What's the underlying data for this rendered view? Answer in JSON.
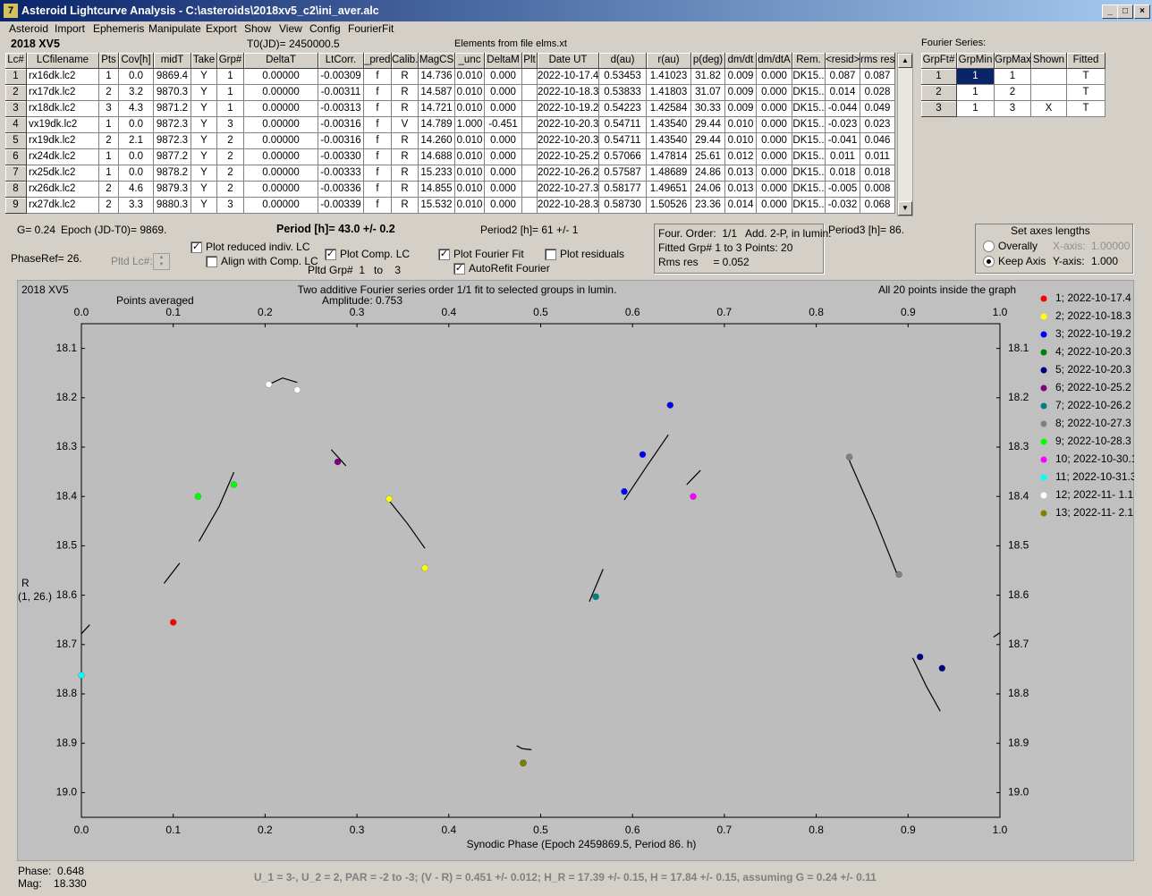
{
  "window": {
    "title": "Asteroid Lightcurve Analysis - C:\\asteroids\\2018xv5_c2\\ini_aver.alc",
    "menu": [
      "Asteroid",
      "Import",
      "Ephemeris",
      "Manipulate",
      "Export",
      "Show",
      "View",
      "Config",
      "FourierFit"
    ]
  },
  "header": {
    "object": "2018 XV5",
    "t0": "T0(JD)= 2450000.5",
    "elements": "Elements from file elms.xt"
  },
  "table": {
    "columns": [
      "Lc#",
      "LCfilename",
      "Pts",
      "Cov[h]",
      "midT",
      "Take",
      "Grp#",
      "DeltaT",
      "LtCorr.",
      "_pred.",
      "Calib.",
      "MagCS",
      "_unc",
      "DeltaM",
      "Plt",
      "Date UT",
      "d(au)",
      "r(au)",
      "p(deg)",
      "dm/dt",
      "dm/dtA",
      "Rem.",
      "<resid>",
      "rms res"
    ],
    "rows": [
      [
        "1",
        "rx16dk.lc2",
        "1",
        "0.0",
        "9869.4",
        "Y",
        "1",
        "0.00000",
        "-0.00309",
        "f",
        "R",
        "14.736",
        "0.010",
        "0.000",
        null,
        "2022-10-17.4",
        "0.53453",
        "1.41023",
        "31.82",
        "0.009",
        "0.000",
        "DK15..",
        "0.087",
        "0.087"
      ],
      [
        "2",
        "rx17dk.lc2",
        "2",
        "3.2",
        "9870.3",
        "Y",
        "1",
        "0.00000",
        "-0.00311",
        "f",
        "R",
        "14.587",
        "0.010",
        "0.000",
        null,
        "2022-10-18.3",
        "0.53833",
        "1.41803",
        "31.07",
        "0.009",
        "0.000",
        "DK15..",
        "0.014",
        "0.028"
      ],
      [
        "3",
        "rx18dk.lc2",
        "3",
        "4.3",
        "9871.2",
        "Y",
        "1",
        "0.00000",
        "-0.00313",
        "f",
        "R",
        "14.721",
        "0.010",
        "0.000",
        null,
        "2022-10-19.2",
        "0.54223",
        "1.42584",
        "30.33",
        "0.009",
        "0.000",
        "DK15..",
        "-0.044",
        "0.049"
      ],
      [
        "4",
        "vx19dk.lc2",
        "1",
        "0.0",
        "9872.3",
        "Y",
        "3",
        "0.00000",
        "-0.00316",
        "f",
        "V",
        "14.789",
        "1.000",
        "-0.451",
        null,
        "2022-10-20.3",
        "0.54711",
        "1.43540",
        "29.44",
        "0.010",
        "0.000",
        "DK15..",
        "-0.023",
        "0.023"
      ],
      [
        "5",
        "rx19dk.lc2",
        "2",
        "2.1",
        "9872.3",
        "Y",
        "2",
        "0.00000",
        "-0.00316",
        "f",
        "R",
        "14.260",
        "0.010",
        "0.000",
        null,
        "2022-10-20.3",
        "0.54711",
        "1.43540",
        "29.44",
        "0.010",
        "0.000",
        "DK15..",
        "-0.041",
        "0.046"
      ],
      [
        "6",
        "rx24dk.lc2",
        "1",
        "0.0",
        "9877.2",
        "Y",
        "2",
        "0.00000",
        "-0.00330",
        "f",
        "R",
        "14.688",
        "0.010",
        "0.000",
        null,
        "2022-10-25.2",
        "0.57066",
        "1.47814",
        "25.61",
        "0.012",
        "0.000",
        "DK15..",
        "0.011",
        "0.011"
      ],
      [
        "7",
        "rx25dk.lc2",
        "1",
        "0.0",
        "9878.2",
        "Y",
        "2",
        "0.00000",
        "-0.00333",
        "f",
        "R",
        "15.233",
        "0.010",
        "0.000",
        null,
        "2022-10-26.2",
        "0.57587",
        "1.48689",
        "24.86",
        "0.013",
        "0.000",
        "DK15..",
        "0.018",
        "0.018"
      ],
      [
        "8",
        "rx26dk.lc2",
        "2",
        "4.6",
        "9879.3",
        "Y",
        "2",
        "0.00000",
        "-0.00336",
        "f",
        "R",
        "14.855",
        "0.010",
        "0.000",
        null,
        "2022-10-27.3",
        "0.58177",
        "1.49651",
        "24.06",
        "0.013",
        "0.000",
        "DK15..",
        "-0.005",
        "0.008"
      ],
      [
        "9",
        "rx27dk.lc2",
        "2",
        "3.3",
        "9880.3",
        "Y",
        "3",
        "0.00000",
        "-0.00339",
        "f",
        "R",
        "15.532",
        "0.010",
        "0.000",
        null,
        "2022-10-28.3",
        "0.58730",
        "1.50526",
        "23.36",
        "0.014",
        "0.000",
        "DK15..",
        "-0.032",
        "0.068"
      ]
    ]
  },
  "fourier": {
    "title": "Fourier Series:",
    "columns": [
      "GrpFt#",
      "GrpMin",
      "GrpMax",
      "Shown",
      "Fitted"
    ],
    "rows": [
      [
        "1",
        "1",
        "1",
        null,
        "T"
      ],
      [
        "2",
        "1",
        "2",
        null,
        "T"
      ],
      [
        "3",
        "1",
        "3",
        "X",
        "T"
      ]
    ]
  },
  "controls": {
    "g": "G= 0.24",
    "epoch": "Epoch (JD-T0)= 9869.",
    "period": "Period [h]= 43.0 +/- 0.2",
    "period2": "Period2 [h]= 61 +/- 1",
    "period3": "Period3 [h]= 86.",
    "phaseref": "PhaseRef= 26.",
    "pltd_lc": "Pltd Lc#:",
    "pltd_grp": "Pltd Grp#  1   to    3",
    "checks": [
      {
        "label": "Plot reduced indiv. LC",
        "checked": true
      },
      {
        "label": "Align with Comp. LC",
        "checked": false
      },
      {
        "label": "Plot Comp. LC",
        "checked": true
      },
      {
        "label": "Plot Fourier Fit",
        "checked": true
      },
      {
        "label": "AutoRefit Fourier",
        "checked": true
      },
      {
        "label": "Plot residuals",
        "checked": false
      }
    ]
  },
  "info": {
    "order": "Four. Order:  1/1",
    "mode": "Add. 2-P, in lumin.",
    "fitted": "Fitted Grp# 1 to 3",
    "points": "Points: 20",
    "rms": "Rms res     = 0.052"
  },
  "axes_box": {
    "title": "Set axes lengths",
    "options": [
      {
        "label": "Overally",
        "selected": false,
        "axis": "X-axis:",
        "value": "1.00000"
      },
      {
        "label": "Keep Axis",
        "selected": true,
        "axis": "Y-axis:",
        "value": "1.000"
      }
    ]
  },
  "chart_data": {
    "type": "scatter",
    "object": "2018 XV5",
    "title": "Two additive Fourier series order 1/1 fit to selected groups in lumin.",
    "subtitle": "Amplitude: 0.753",
    "note_left": "Points averaged",
    "note_right": "All 20 points inside the graph",
    "y_label": [
      "R",
      "(1, 26.)"
    ],
    "x_label": "Synodic Phase (Epoch 2459869.5, Period 86. h)",
    "xlim": [
      0,
      1
    ],
    "ylim": [
      18.05,
      19.05
    ],
    "y_inverted": true,
    "legend": "right",
    "xticks": [
      {
        "value": 0,
        "label": "0.0"
      },
      0.1,
      0.2,
      0.3,
      0.4,
      0.5,
      0.6,
      0.7,
      0.8,
      0.9,
      {
        "value": 1,
        "label": "1.0"
      }
    ],
    "yticks": [
      18.1,
      18.2,
      18.3,
      18.4,
      18.5,
      18.6,
      18.7,
      18.8,
      18.9,
      {
        "value": 19,
        "label": "19.0"
      }
    ],
    "series": [
      {
        "name": "1; 2022-10-17.4",
        "color": "#ff0000",
        "x": [
          0.1
        ],
        "values": [
          18.655
        ]
      },
      {
        "name": "2; 2022-10-18.3",
        "color": "#ffff00",
        "x": [
          0.335,
          0.374
        ],
        "values": [
          18.405,
          18.545
        ]
      },
      {
        "name": "3; 2022-10-19.2",
        "color": "#0000ff",
        "x": [
          0.641,
          0.611,
          0.591
        ],
        "values": [
          18.215,
          18.315,
          18.39
        ]
      },
      {
        "name": "4; 2022-10-20.3",
        "color": "#008000",
        "x": [
          0.481
        ],
        "values": [
          18.94
        ]
      },
      {
        "name": "5; 2022-10-20.3",
        "color": "#000080",
        "x": [
          0.913,
          0.937
        ],
        "values": [
          18.725,
          18.748
        ]
      },
      {
        "name": "6; 2022-10-25.2",
        "color": "#800080",
        "x": [
          0.279
        ],
        "values": [
          18.33
        ]
      },
      {
        "name": "7; 2022-10-26.2",
        "color": "#008080",
        "x": [
          0.56
        ],
        "values": [
          18.603
        ]
      },
      {
        "name": "8; 2022-10-27.3",
        "color": "#808080",
        "x": [
          0.836,
          0.89
        ],
        "values": [
          18.32,
          18.558
        ]
      },
      {
        "name": "9; 2022-10-28.3",
        "color": "#00ff00",
        "x": [
          0.127,
          0.166
        ],
        "values": [
          18.4,
          18.376
        ]
      },
      {
        "name": "10; 2022-10-30.1",
        "color": "#ff00ff",
        "x": [
          0.666
        ],
        "values": [
          18.4
        ]
      },
      {
        "name": "11; 2022-10-31.3",
        "color": "#00ffff",
        "x": [
          0.0
        ],
        "values": [
          18.762
        ]
      },
      {
        "name": "12; 2022-11- 1.1",
        "color": "#ffffff",
        "x": [
          0.204,
          0.235
        ],
        "values": [
          18.173,
          18.184
        ]
      },
      {
        "name": "13; 2022-11- 2.1",
        "color": "#808000",
        "x": [
          0.481
        ],
        "values": [
          18.94
        ]
      }
    ],
    "fit_curves": [
      {
        "x": [
          0.0,
          0.009
        ],
        "values": [
          18.678,
          18.66
        ]
      },
      {
        "x": [
          0.09,
          0.107
        ],
        "values": [
          18.576,
          18.535
        ]
      },
      {
        "x": [
          0.128,
          0.15,
          0.166
        ],
        "values": [
          18.491,
          18.42,
          18.351
        ]
      },
      {
        "x": [
          0.204,
          0.219,
          0.235
        ],
        "values": [
          18.173,
          18.16,
          18.169
        ]
      },
      {
        "x": [
          0.272,
          0.288
        ],
        "values": [
          18.305,
          18.338
        ]
      },
      {
        "x": [
          0.336,
          0.355,
          0.374
        ],
        "values": [
          18.411,
          18.455,
          18.505
        ]
      },
      {
        "x": [
          0.474,
          0.48,
          0.49
        ],
        "values": [
          18.905,
          18.911,
          18.913
        ]
      },
      {
        "x": [
          0.553,
          0.568
        ],
        "values": [
          18.613,
          18.547
        ]
      },
      {
        "x": [
          0.591,
          0.615,
          0.639
        ],
        "values": [
          18.407,
          18.34,
          18.275
        ]
      },
      {
        "x": [
          0.659,
          0.674
        ],
        "values": [
          18.376,
          18.347
        ]
      },
      {
        "x": [
          0.836,
          0.865,
          0.889
        ],
        "values": [
          18.327,
          18.45,
          18.562
        ]
      },
      {
        "x": [
          0.905,
          0.92,
          0.935
        ],
        "values": [
          18.727,
          18.785,
          18.835
        ]
      },
      {
        "x": [
          0.993,
          1.0
        ],
        "values": [
          18.685,
          18.676
        ]
      }
    ]
  },
  "status": {
    "phase": "Phase:  0.648",
    "mag": "Mag:    18.330",
    "summary": "U_1 = 3-, U_2 = 2, PAR = -2 to -3; (V - R) = 0.451 +/- 0.012; H_R = 17.39 +/- 0.15, H = 17.84 +/- 0.15, assuming G = 0.24 +/- 0.11"
  }
}
